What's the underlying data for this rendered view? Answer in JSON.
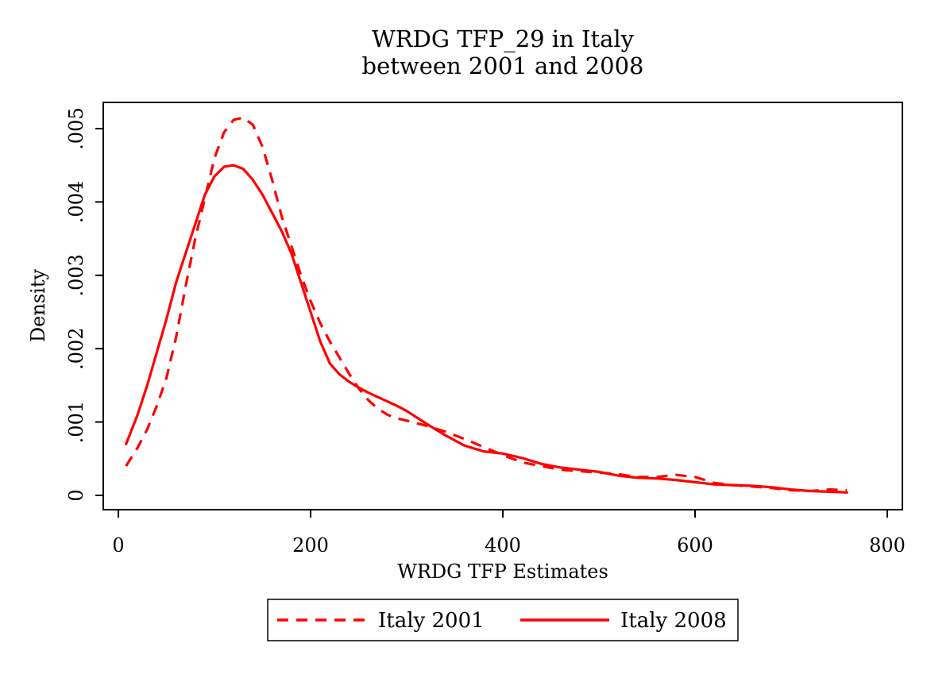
{
  "chart_data": {
    "type": "line",
    "title": "WRDG TFP_29 in Italy",
    "subtitle": "between 2001 and 2008",
    "xlabel": "WRDG TFP Estimates",
    "ylabel": "Density",
    "xlim": [
      0,
      800
    ],
    "ylim": [
      0,
      0.005
    ],
    "x_ticks": [
      0,
      200,
      400,
      600,
      800
    ],
    "x_tick_labels": [
      "0",
      "200",
      "400",
      "600",
      "800"
    ],
    "y_ticks": [
      0,
      0.001,
      0.002,
      0.003,
      0.004,
      0.005
    ],
    "y_tick_labels": [
      "0",
      ".001",
      ".002",
      ".003",
      ".004",
      ".005"
    ],
    "grid": false,
    "legend_position": "bottom",
    "series": [
      {
        "name": "Italy 2001",
        "style": "dashed",
        "color": "#ff0000",
        "x": [
          8,
          20,
          30,
          40,
          50,
          60,
          70,
          80,
          90,
          100,
          110,
          120,
          130,
          140,
          150,
          160,
          170,
          180,
          190,
          200,
          210,
          220,
          230,
          240,
          250,
          260,
          270,
          280,
          290,
          300,
          320,
          340,
          360,
          380,
          400,
          420,
          440,
          460,
          480,
          500,
          520,
          540,
          560,
          580,
          600,
          620,
          640,
          660,
          680,
          700,
          720,
          740,
          758
        ],
        "y": [
          0.0004,
          0.00065,
          0.0009,
          0.00122,
          0.0016,
          0.00215,
          0.00285,
          0.0035,
          0.00405,
          0.0046,
          0.00495,
          0.00512,
          0.00515,
          0.00505,
          0.00475,
          0.0043,
          0.0038,
          0.0034,
          0.003,
          0.00265,
          0.00235,
          0.0021,
          0.00188,
          0.00166,
          0.00146,
          0.0013,
          0.00118,
          0.0011,
          0.00105,
          0.00102,
          0.00095,
          0.00087,
          0.00077,
          0.00066,
          0.00055,
          0.00045,
          0.0004,
          0.00035,
          0.00033,
          0.00031,
          0.00029,
          0.00025,
          0.00025,
          0.00028,
          0.00025,
          0.00017,
          0.00014,
          0.00012,
          0.0001,
          7e-05,
          6e-05,
          8e-05,
          7e-05
        ]
      },
      {
        "name": "Italy 2008",
        "style": "solid",
        "color": "#ff0000",
        "x": [
          8,
          20,
          30,
          40,
          50,
          60,
          70,
          80,
          90,
          100,
          110,
          120,
          130,
          140,
          150,
          160,
          170,
          180,
          190,
          200,
          210,
          220,
          230,
          240,
          250,
          260,
          270,
          280,
          290,
          300,
          320,
          340,
          360,
          380,
          400,
          420,
          440,
          460,
          480,
          500,
          520,
          540,
          560,
          580,
          600,
          620,
          640,
          660,
          680,
          700,
          720,
          740,
          758
        ],
        "y": [
          0.0007,
          0.0011,
          0.0015,
          0.00195,
          0.0024,
          0.0029,
          0.0033,
          0.0037,
          0.0041,
          0.00435,
          0.00448,
          0.0045,
          0.00445,
          0.0043,
          0.0041,
          0.00385,
          0.0036,
          0.0033,
          0.0029,
          0.0025,
          0.0021,
          0.0018,
          0.00165,
          0.00155,
          0.00147,
          0.0014,
          0.00134,
          0.00128,
          0.00122,
          0.00115,
          0.00098,
          0.00082,
          0.00068,
          0.0006,
          0.00057,
          0.00051,
          0.00043,
          0.00038,
          0.00035,
          0.00032,
          0.00027,
          0.00024,
          0.00023,
          0.00021,
          0.00018,
          0.00015,
          0.00014,
          0.00013,
          0.00011,
          8e-05,
          6e-05,
          5e-05,
          4e-05
        ]
      }
    ]
  }
}
